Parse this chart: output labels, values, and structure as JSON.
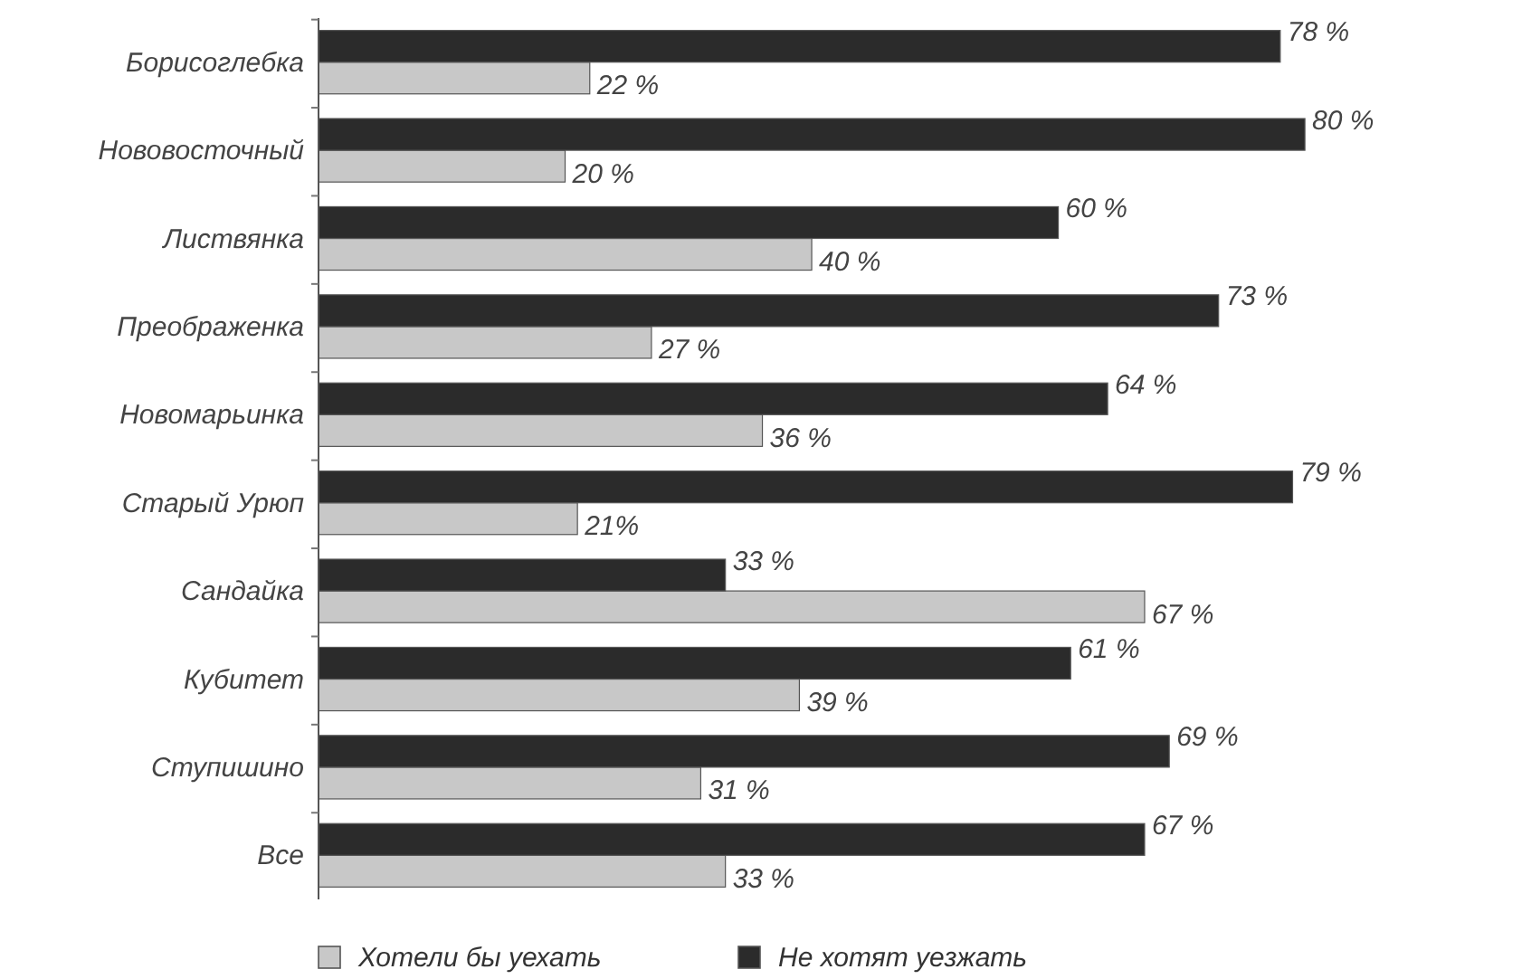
{
  "chart_data": {
    "type": "bar",
    "orientation": "horizontal",
    "categories": [
      "Борисоглебка",
      "Нововосточный",
      "Листвянка",
      "Преображенка",
      "Новомарьинка",
      "Старый Урюп",
      "Сандайка",
      "Кубитет",
      "Ступишино",
      "Все"
    ],
    "series": [
      {
        "name": "Хотели бы уехать",
        "color": "#c8c8c8",
        "values": [
          22,
          20,
          40,
          27,
          36,
          21,
          67,
          39,
          31,
          33
        ],
        "value_labels": [
          "22 %",
          "20 %",
          "40 %",
          "27 %",
          "36 %",
          "21%",
          "67 %",
          "39 %",
          "31 %",
          "33 %"
        ]
      },
      {
        "name": "Не хотят уезжать",
        "color": "#2b2b2b",
        "values": [
          78,
          80,
          60,
          73,
          64,
          79,
          33,
          61,
          69,
          67
        ],
        "value_labels": [
          "78 %",
          "80 %",
          "60 %",
          "73 %",
          "64 %",
          "79 %",
          "33 %",
          "61 %",
          "69 %",
          "67 %"
        ]
      }
    ],
    "legend": "bottom"
  }
}
